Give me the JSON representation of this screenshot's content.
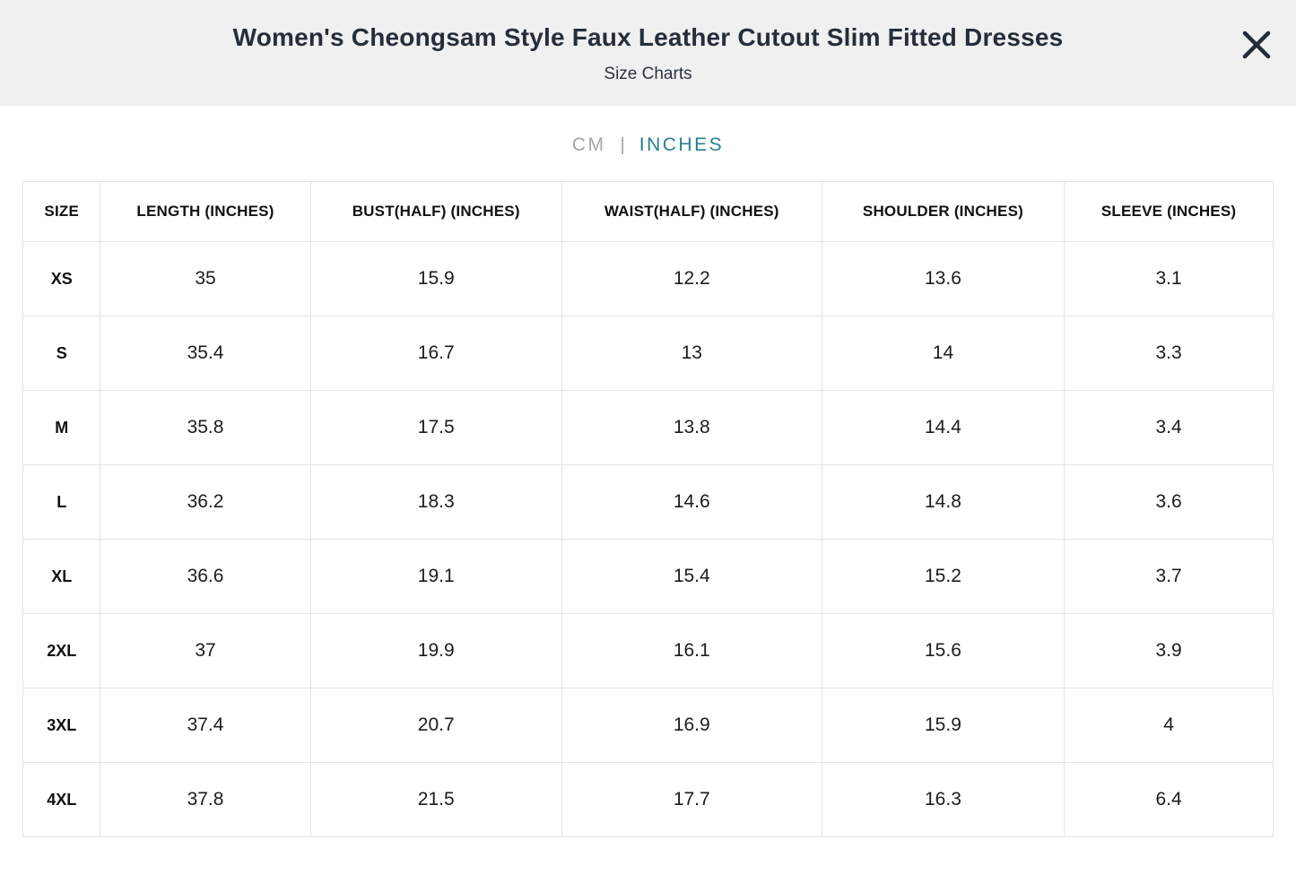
{
  "modal": {
    "title": "Women's Cheongsam Style Faux Leather Cutout Slim Fitted Dresses",
    "subtitle": "Size Charts",
    "close_icon": "close-x",
    "header_bg": "#f0f0f1",
    "close_color": "#222b38"
  },
  "unit_toggle": {
    "separator": "|",
    "options": [
      {
        "label": "CM",
        "active": false
      },
      {
        "label": "INCHES",
        "active": true
      }
    ],
    "active_color": "#26808c",
    "inactive_color": "#a5a5a5"
  },
  "chart_data": {
    "type": "table",
    "title": "Size Charts (INCHES)",
    "columns": [
      "SIZE",
      "LENGTH (INCHES)",
      "BUST(HALF) (INCHES)",
      "WAIST(HALF) (INCHES)",
      "SHOULDER (INCHES)",
      "SLEEVE (INCHES)"
    ],
    "rows": [
      [
        "XS",
        "35",
        "15.9",
        "12.2",
        "13.6",
        "3.1"
      ],
      [
        "S",
        "35.4",
        "16.7",
        "13",
        "14",
        "3.3"
      ],
      [
        "M",
        "35.8",
        "17.5",
        "13.8",
        "14.4",
        "3.4"
      ],
      [
        "L",
        "36.2",
        "18.3",
        "14.6",
        "14.8",
        "3.6"
      ],
      [
        "XL",
        "36.6",
        "19.1",
        "15.4",
        "15.2",
        "3.7"
      ],
      [
        "2XL",
        "37",
        "19.9",
        "16.1",
        "15.6",
        "3.9"
      ],
      [
        "3XL",
        "37.4",
        "20.7",
        "16.9",
        "15.9",
        "4"
      ],
      [
        "4XL",
        "37.8",
        "21.5",
        "17.7",
        "16.3",
        "6.4"
      ]
    ]
  }
}
